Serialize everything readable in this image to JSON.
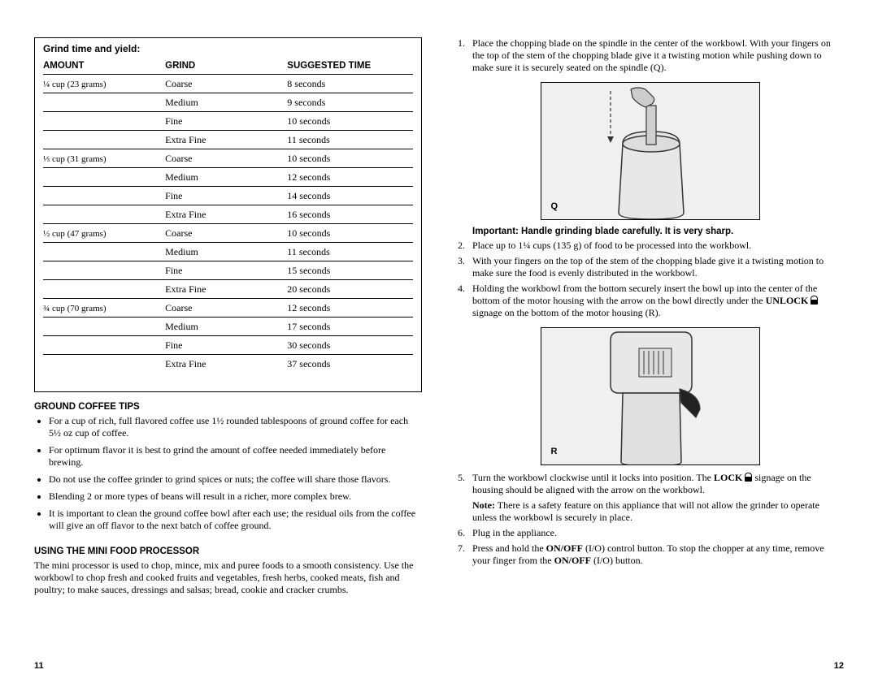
{
  "left": {
    "tableTitle": "Grind time and yield:",
    "headers": [
      "AMOUNT",
      "GRIND",
      "SUGGESTED TIME"
    ],
    "rows": [
      [
        "¼ cup (23 grams)",
        "Coarse",
        "8 seconds"
      ],
      [
        "",
        "Medium",
        "9 seconds"
      ],
      [
        "",
        "Fine",
        "10 seconds"
      ],
      [
        "",
        "Extra Fine",
        "11 seconds"
      ],
      [
        "⅓ cup (31 grams)",
        "Coarse",
        "10 seconds"
      ],
      [
        "",
        "Medium",
        "12 seconds"
      ],
      [
        "",
        "Fine",
        "14 seconds"
      ],
      [
        "",
        "Extra Fine",
        "16 seconds"
      ],
      [
        "½ cup (47 grams)",
        "Coarse",
        "10 seconds"
      ],
      [
        "",
        "Medium",
        "11 seconds"
      ],
      [
        "",
        "Fine",
        "15 seconds"
      ],
      [
        "",
        "Extra Fine",
        "20 seconds"
      ],
      [
        "¾ cup (70 grams)",
        "Coarse",
        "12 seconds"
      ],
      [
        "",
        "Medium",
        "17 seconds"
      ],
      [
        "",
        "Fine",
        "30 seconds"
      ],
      [
        "",
        "Extra Fine",
        "37 seconds"
      ]
    ],
    "tipsHead": "GROUND COFFEE TIPS",
    "tips": [
      "For a cup of rich, full flavored coffee use 1½ rounded tablespoons of ground coffee for each 5½ oz cup of coffee.",
      "For optimum flavor it is best to grind the amount of coffee needed immediately before brewing.",
      "Do not use the coffee grinder to grind spices or nuts; the coffee will share those flavors.",
      "Blending 2 or more types of beans will result in a richer, more complex brew.",
      "It is important to clean the ground coffee bowl after each use; the residual oils from the coffee will give an off flavor to the next batch of coffee ground."
    ],
    "miniHead": "USING THE MINI FOOD PROCESSOR",
    "miniPara": "The mini processor is used to chop, mince, mix and puree foods to a smooth consistency.  Use the workbowl to chop fresh and cooked fruits and vegetables, fresh herbs, cooked meats, fish and poultry; to make sauces, dressings and salsas; bread, cookie and cracker crumbs.",
    "pageNum": "11"
  },
  "right": {
    "step1": "Place the chopping blade on the spindle in the center of the workbowl. With your fingers on the top of the stem of the chopping blade give it a twisting motion while pushing down to make sure it is securely seated on the spindle (Q).",
    "figQ": "Q",
    "important": "Important: Handle grinding blade carefully.  It is very sharp.",
    "step2": "Place up to 1¼ cups (135 g) of food to be processed into the workbowl.",
    "step3": "With your fingers on the top of the stem of the chopping blade give it a twisting motion to make sure the food is evenly distributed in the workbowl.",
    "step4a": "Holding the workbowl from the bottom securely insert the bowl up into the center of the bottom of the motor housing with the arrow on the bowl directly under the ",
    "step4b": "UNLOCK",
    "step4c": " signage on the bottom of the motor housing (R).",
    "figR": "R",
    "step5a": "Turn the workbowl clockwise until it locks into position.  The ",
    "step5b": "LOCK",
    "step5c": " signage on the housing should be aligned with the arrow on the workbowl.",
    "noteA": "Note:",
    "noteB": " There is a safety feature on this appliance that will not allow the grinder to operate unless the workbowl is securely in place.",
    "step6": "Plug in the appliance.",
    "step7a": "Press and hold the ",
    "step7b": "ON/OFF",
    "step7c": " (I/O) control button. To stop the chopper at any time, remove your finger from the ",
    "step7d": "ON/OFF",
    "step7e": " (I/O) button.",
    "pageNum": "12"
  }
}
